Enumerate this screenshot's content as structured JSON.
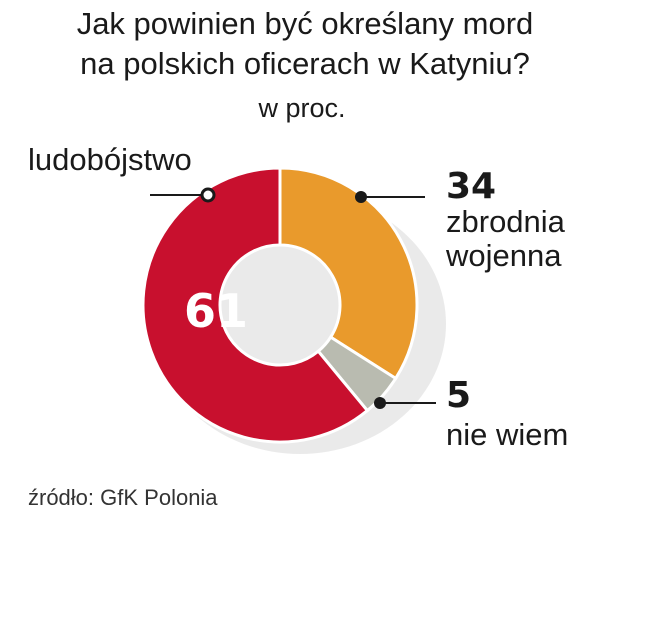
{
  "header": {
    "title_line1": "Jak powinien być określany mord",
    "title_line2": "na polskich oficerach w Katyniu?",
    "unit": "w proc."
  },
  "source": "źródło: GfK Polonia",
  "colors": {
    "ludobojstwo": "#c8102e",
    "zbrodnia": "#e99a2c",
    "nie_wiem": "#b9bbb0",
    "shadow": "#d9d9d9"
  },
  "chart_data": {
    "type": "pie",
    "donut": true,
    "title": "Jak powinien być określany mord na polskich oficerach w Katyniu?",
    "subtitle": "w proc.",
    "slices": [
      {
        "label": "zbrodnia wojenna",
        "value": 34,
        "value_text": "34",
        "color": "#e99a2c"
      },
      {
        "label": "nie wiem",
        "value": 5,
        "value_text": "5",
        "color": "#b9bbb0"
      },
      {
        "label": "ludobójstwo",
        "value": 61,
        "value_text": "61",
        "color": "#c8102e"
      }
    ],
    "labels": {
      "zbrodnia_line1": "zbrodnia",
      "zbrodnia_line2": "wojenna",
      "nie_wiem": "nie wiem",
      "ludobojstwo": "ludobójstwo"
    },
    "legend": "none"
  }
}
